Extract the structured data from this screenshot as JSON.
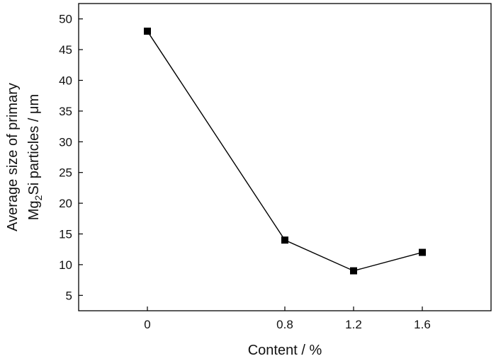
{
  "chart_data": {
    "type": "line",
    "xlabel": "Content / %",
    "ylabel": {
      "line1": "Average size of primary",
      "line2_prefix": "Mg",
      "line2_sub": "2",
      "line2_suffix": "Si particles / μm"
    },
    "x_ticks": [
      0,
      0.8,
      1.2,
      1.6
    ],
    "x_tick_labels": [
      "0",
      "0.8",
      "1.2",
      "1.6"
    ],
    "y_ticks": [
      5,
      10,
      15,
      20,
      25,
      30,
      35,
      40,
      45,
      50
    ],
    "y_tick_labels": [
      "5",
      "10",
      "15",
      "20",
      "25",
      "30",
      "35",
      "40",
      "45",
      "50"
    ],
    "xlim": [
      -0.4,
      2.0
    ],
    "ylim": [
      2.5,
      52.5
    ],
    "series": [
      {
        "x": [
          0,
          0.8,
          1.2,
          1.6
        ],
        "values": [
          48,
          14,
          9,
          12
        ],
        "marker": "square",
        "color": "#000000"
      }
    ],
    "grid": false,
    "legend": "none"
  }
}
